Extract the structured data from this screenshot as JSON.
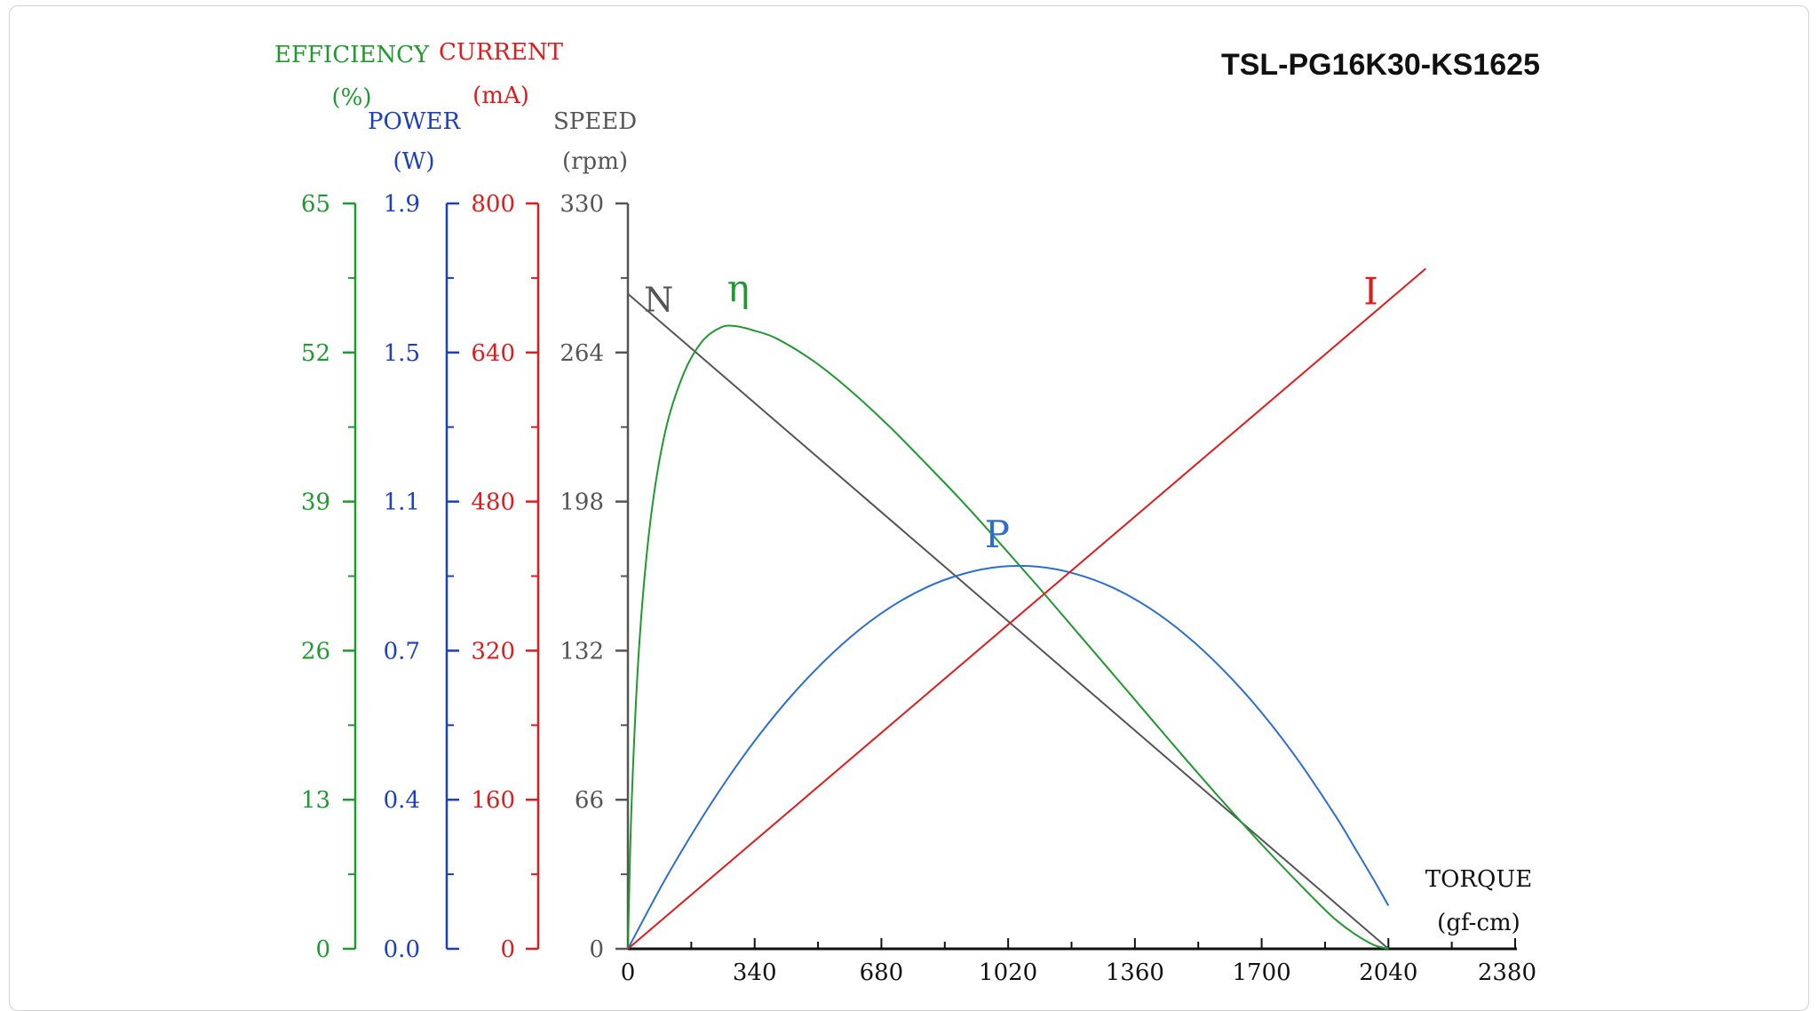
{
  "chart_data": {
    "type": "line",
    "title": "TSL-PG16K30-KS1625",
    "x_axis": {
      "label": "TORQUE",
      "unit_label": "(gf-cm)",
      "range": [
        0,
        2380
      ],
      "ticks": [
        "0",
        "340",
        "680",
        "1020",
        "1360",
        "1700",
        "2040",
        "2380"
      ]
    },
    "y_axes": [
      {
        "id": "eff",
        "label": "EFFICIENCY",
        "unit_label": "(%)",
        "color": "#1f9a2e",
        "range": [
          0,
          65
        ],
        "ticks": [
          "0",
          "13",
          "26",
          "39",
          "52",
          "65"
        ]
      },
      {
        "id": "pow",
        "label": "POWER",
        "unit_label": "(W)",
        "color": "#1a3fbf",
        "range": [
          0,
          1.9
        ],
        "ticks": [
          "0.0",
          "0.4",
          "0.7",
          "1.1",
          "1.5",
          "1.9"
        ]
      },
      {
        "id": "cur",
        "label": "CURRENT",
        "unit_label": "(mA)",
        "color": "#e01b1b",
        "range": [
          0,
          800
        ],
        "ticks": [
          "0",
          "160",
          "320",
          "480",
          "640",
          "800"
        ]
      },
      {
        "id": "spd",
        "label": "SPEED",
        "unit_label": "(rpm)",
        "color": "#555555",
        "range": [
          0,
          330
        ],
        "ticks": [
          "0",
          "66",
          "132",
          "198",
          "264",
          "330"
        ]
      }
    ],
    "series": [
      {
        "name": "N",
        "axis": "spd",
        "color": "#555555",
        "x": [
          0,
          2040
        ],
        "y": [
          290,
          0
        ]
      },
      {
        "name": "η",
        "axis": "eff",
        "color": "#1f9a2e",
        "x": [
          0,
          10,
          30,
          60,
          100,
          150,
          200,
          250,
          290,
          340,
          400,
          500,
          600,
          700,
          800,
          900,
          1000,
          1100,
          1200,
          1300,
          1400,
          1500,
          1600,
          1700,
          1800,
          1900,
          1990,
          2040
        ],
        "y": [
          0,
          12.7,
          26.3,
          37.2,
          45.1,
          50.2,
          53.0,
          54.2,
          54.3,
          53.9,
          53.2,
          51.2,
          48.6,
          45.6,
          42.3,
          38.9,
          35.3,
          31.6,
          27.8,
          24.0,
          20.2,
          16.4,
          12.7,
          9.1,
          5.7,
          2.5,
          0.5,
          0
        ]
      },
      {
        "name": "P",
        "axis": "pow",
        "color": "#2a6fd1",
        "x": [
          0,
          100,
          200,
          300,
          400,
          500,
          600,
          700,
          800,
          900,
          1000,
          1100,
          1200,
          1300,
          1400,
          1500,
          1600,
          1700,
          1800,
          1900,
          1950,
          2000,
          2040
        ],
        "y": [
          0,
          0.177,
          0.336,
          0.478,
          0.602,
          0.708,
          0.797,
          0.868,
          0.921,
          0.956,
          0.974,
          0.974,
          0.956,
          0.921,
          0.868,
          0.797,
          0.708,
          0.602,
          0.478,
          0.336,
          0.257,
          0.177,
          0.11
        ]
      },
      {
        "name": "I",
        "axis": "cur",
        "color": "#e01b1b",
        "x": [
          0,
          2140
        ],
        "y": [
          0,
          730
        ]
      }
    ]
  }
}
